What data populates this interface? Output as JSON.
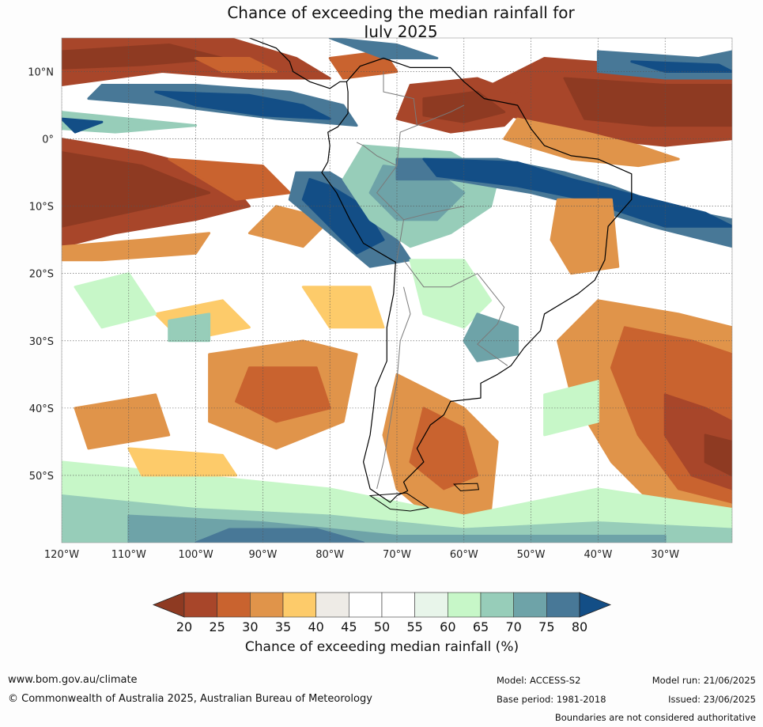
{
  "title": {
    "line1": "Chance of exceeding the median rainfall for",
    "line2": "July 2025"
  },
  "map": {
    "lat_labels": [
      "10°N",
      "0°",
      "10°S",
      "20°S",
      "30°S",
      "40°S",
      "50°S"
    ],
    "lon_labels": [
      "120°W",
      "110°W",
      "100°W",
      "90°W",
      "80°W",
      "70°W",
      "60°W",
      "50°W",
      "40°W",
      "30°W"
    ],
    "extent": {
      "lon_min": -120,
      "lon_max": -20,
      "lat_min": -60,
      "lat_max": 15
    },
    "gridlines": true
  },
  "colorbar": {
    "ticks": [
      "20",
      "25",
      "30",
      "35",
      "40",
      "45",
      "50",
      "55",
      "60",
      "65",
      "70",
      "75",
      "80"
    ],
    "colors": [
      "#8e3a22",
      "#a8462a",
      "#c9632f",
      "#e0944a",
      "#fdcb6a",
      "#eeebe6",
      "#ffffff",
      "#ffffff",
      "#e8f5ea",
      "#c7f7c8",
      "#97cdb9",
      "#6ea3a8",
      "#487897",
      "#134e86"
    ],
    "title": "Chance of exceeding median rainfall (%)"
  },
  "footer": {
    "website": "www.bom.gov.au/climate",
    "copyright": "© Commonwealth of Australia 2025, Australian Bureau of Meteorology",
    "model": "Model: ACCESS-S2",
    "model_run": "Model run: 21/06/2025",
    "base_period": "Base period: 1981-2018",
    "issued": "Issued: 23/06/2025",
    "disclaimer": "Boundaries are not considered authoritative"
  }
}
